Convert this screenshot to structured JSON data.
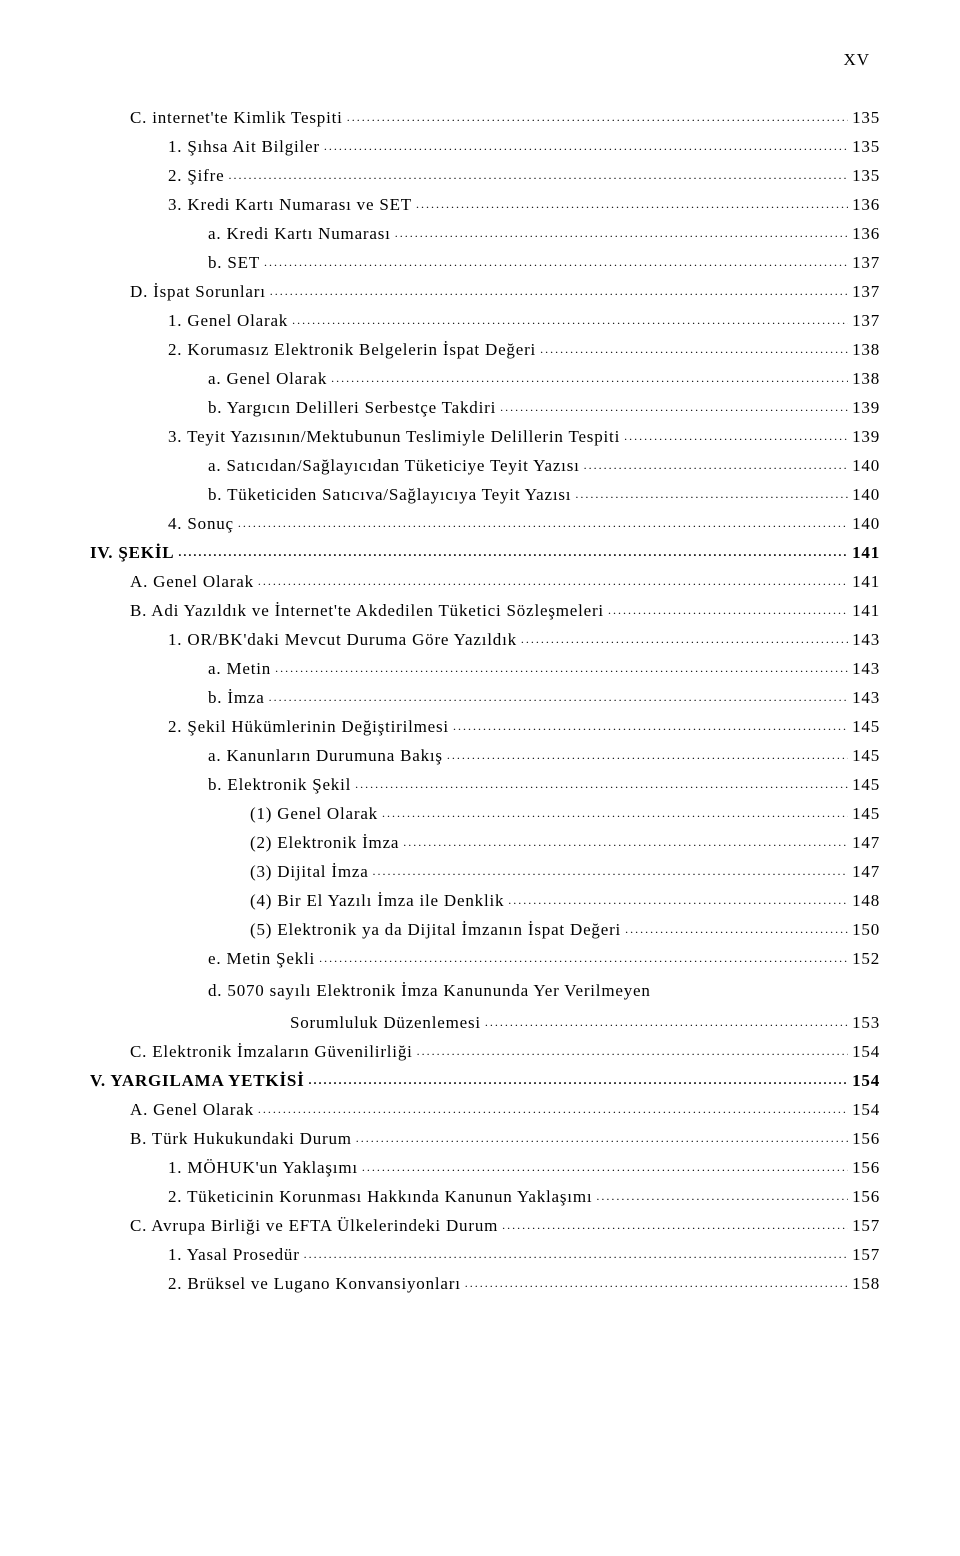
{
  "pageNumber": "XV",
  "entries": [
    {
      "indent": "ind-1",
      "label": "C. internet'te Kimlik Tespiti",
      "page": "135"
    },
    {
      "indent": "ind-2",
      "label": "1. Şıhsa Ait Bilgiler",
      "page": "135"
    },
    {
      "indent": "ind-2",
      "label": "2. Şifre",
      "page": "135"
    },
    {
      "indent": "ind-2",
      "label": "3. Kredi Kartı Numarası ve SET",
      "page": "136"
    },
    {
      "indent": "ind-3",
      "label": "a. Kredi Kartı Numarası",
      "page": "136"
    },
    {
      "indent": "ind-3",
      "label": "b. SET",
      "page": "137"
    },
    {
      "indent": "ind-1",
      "label": "D. İspat Sorunları",
      "page": "137"
    },
    {
      "indent": "ind-2",
      "label": "1. Genel Olarak",
      "page": "137"
    },
    {
      "indent": "ind-2",
      "label": "2. Korumasız Elektronik Belgelerin İspat Değeri",
      "page": "138"
    },
    {
      "indent": "ind-3",
      "label": "a. Genel Olarak",
      "page": "138"
    },
    {
      "indent": "ind-3",
      "label": "b. Yargıcın Delilleri Serbestçe Takdiri",
      "page": "139"
    },
    {
      "indent": "ind-2",
      "label": "3. Teyit Yazısının/Mektubunun Teslimiyle Delillerin Tespiti",
      "page": "139"
    },
    {
      "indent": "ind-3",
      "label": "a. Satıcıdan/Sağlayıcıdan Tüketiciye Teyit Yazısı",
      "page": "140"
    },
    {
      "indent": "ind-3",
      "label": "b. Tüketiciden Satıcıva/Sağlayıcıya Teyit Yazısı",
      "page": "140"
    },
    {
      "indent": "ind-2",
      "label": "4. Sonuç",
      "page": "140"
    },
    {
      "indent": "ind-00",
      "label": "IV. ŞEKİL",
      "page": "141",
      "bold": true
    },
    {
      "indent": "ind-1",
      "label": "A. Genel Olarak",
      "page": "141"
    },
    {
      "indent": "ind-1",
      "label": "B. Adi Yazıldık ve İnternet'te Akdedilen Tüketici Sözleşmeleri",
      "page": "141"
    },
    {
      "indent": "ind-2",
      "label": "1. OR/BK'daki Mevcut Duruma Göre Yazıldık",
      "page": "143"
    },
    {
      "indent": "ind-3",
      "label": "a. Metin",
      "page": "143"
    },
    {
      "indent": "ind-3",
      "label": "b. İmza",
      "page": "143"
    },
    {
      "indent": "ind-2",
      "label": "2. Şekil Hükümlerinin Değiştirilmesi",
      "page": "145"
    },
    {
      "indent": "ind-3",
      "label": "a. Kanunların Durumuna Bakış",
      "page": "145"
    },
    {
      "indent": "ind-3",
      "label": "b. Elektronik Şekil",
      "page": "145"
    },
    {
      "indent": "ind-4",
      "label": "(1) Genel Olarak",
      "page": "145"
    },
    {
      "indent": "ind-4",
      "label": "(2) Elektronik İmza",
      "page": "147"
    },
    {
      "indent": "ind-4",
      "label": "(3) Dijital İmza",
      "page": "147"
    },
    {
      "indent": "ind-4",
      "label": "(4) Bir El Yazılı İmza ile Denklik",
      "page": "148"
    },
    {
      "indent": "ind-4",
      "label": "(5) Elektronik ya da Dijital İmzanın İspat Değeri",
      "page": "150"
    },
    {
      "indent": "ind-3",
      "label": "e. Metin Şekli",
      "page": "152"
    },
    {
      "indent": "ind-3",
      "label": "d. 5070 sayılı Elektronik İmza Kanununda Yer Verilmeyen",
      "label2": "Sorumluluk Düzenlemesi",
      "page": "153",
      "multi": true,
      "line2Indent": "ind-5"
    },
    {
      "indent": "ind-1",
      "label": "C. Elektronik İmzaların Güvenilirliği",
      "page": "154"
    },
    {
      "indent": "ind-00",
      "label": "V. YARGILAMA YETKİSİ",
      "page": "154",
      "bold": true
    },
    {
      "indent": "ind-1",
      "label": "A. Genel Olarak",
      "page": "154"
    },
    {
      "indent": "ind-1",
      "label": "B. Türk Hukukundaki Durum",
      "page": "156"
    },
    {
      "indent": "ind-2",
      "label": "1. MÖHUK'un Yaklaşımı",
      "page": "156"
    },
    {
      "indent": "ind-2",
      "label": "2. Tüketicinin Korunması Hakkında Kanunun Yaklaşımı",
      "page": "156"
    },
    {
      "indent": "ind-1",
      "label": "C. Avrupa Birliği ve EFTA Ülkelerindeki Durum",
      "page": "157"
    },
    {
      "indent": "ind-2",
      "label": "1. Yasal Prosedür",
      "page": "157"
    },
    {
      "indent": "ind-2",
      "label": "2. Brüksel ve Lugano Konvansiyonları",
      "page": "158"
    }
  ]
}
